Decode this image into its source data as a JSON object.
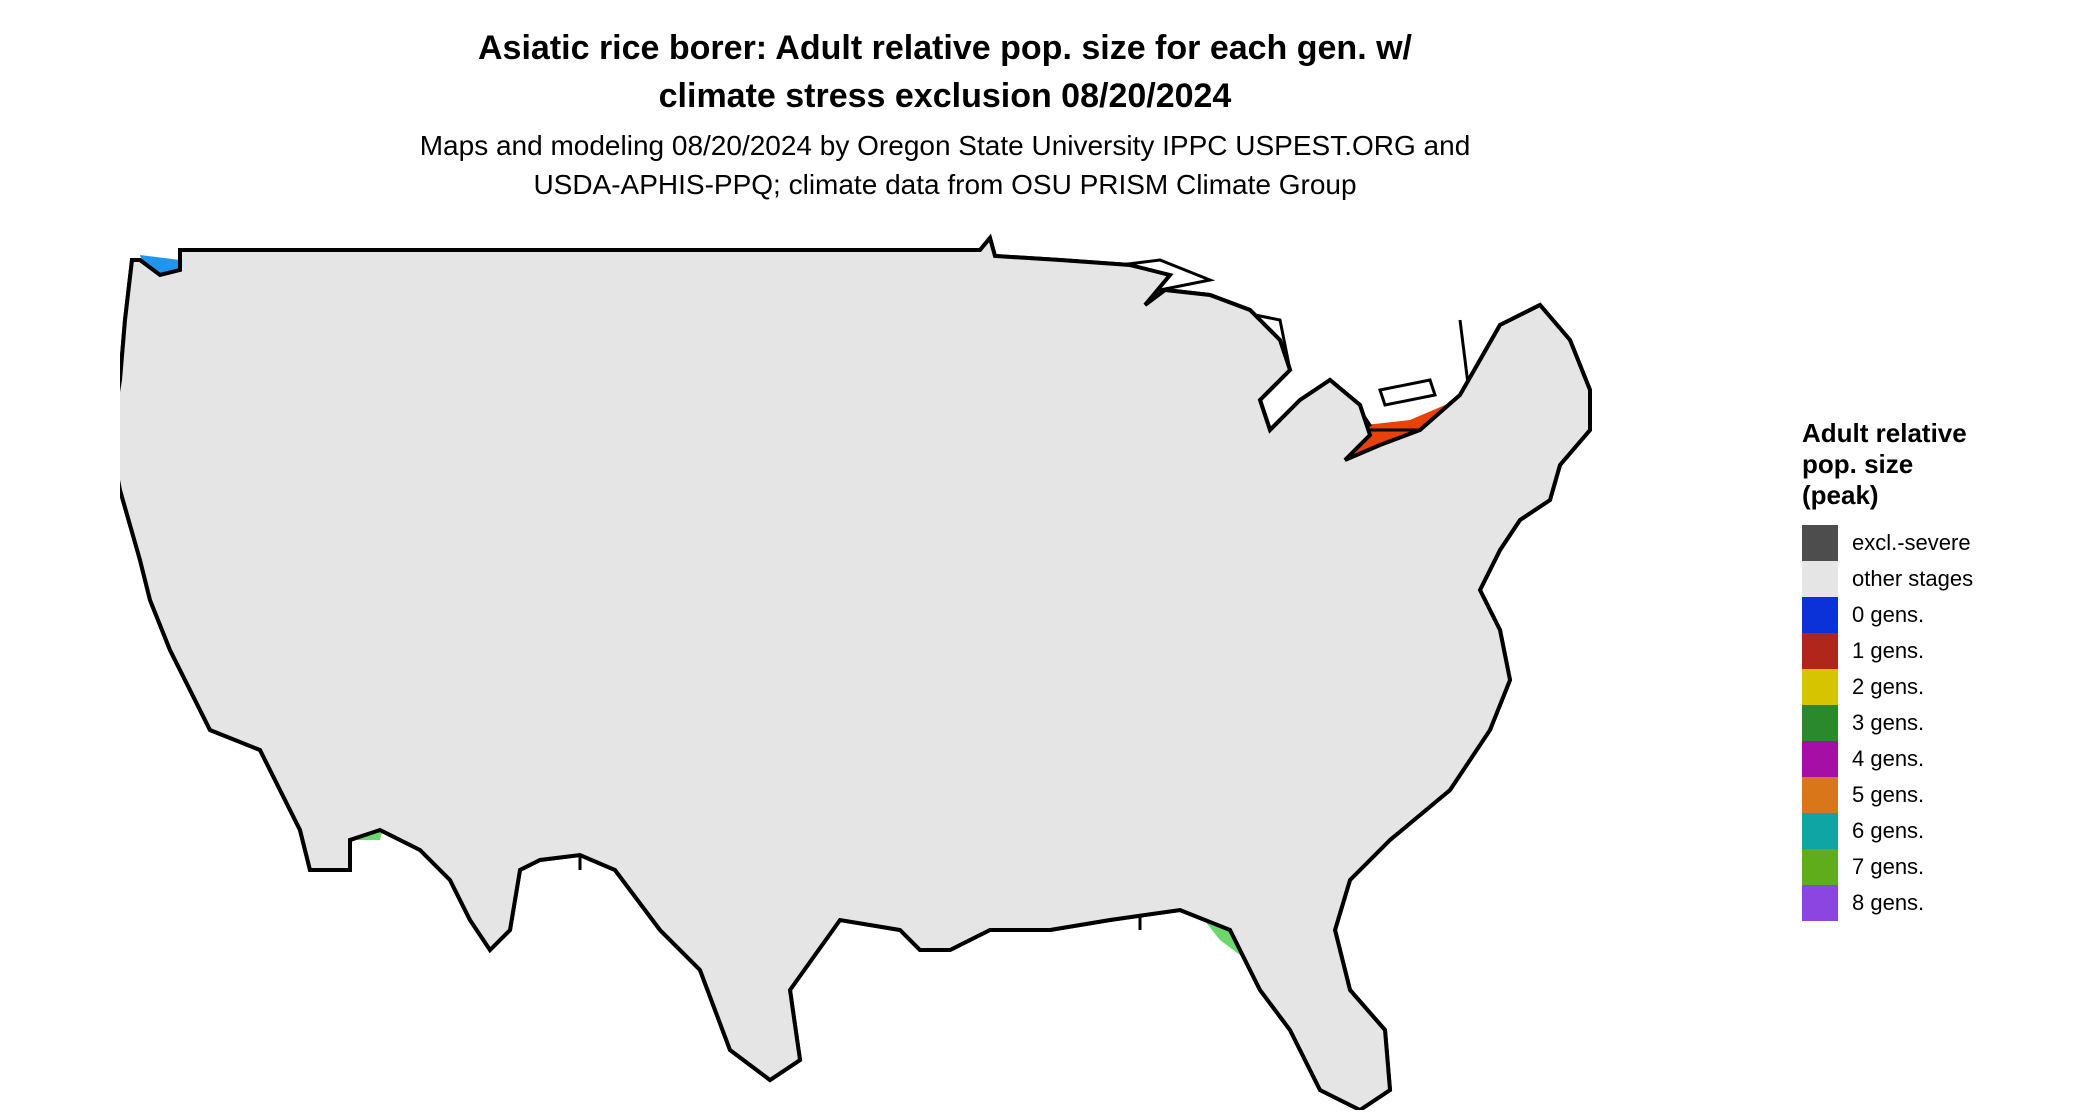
{
  "title": {
    "line1": "Asiatic rice borer: Adult relative pop. size for each gen. w/",
    "line2": "climate stress exclusion 08/20/2024"
  },
  "subtitle": {
    "line1": "Maps and modeling 08/20/2024 by Oregon State University IPPC USPEST.ORG and",
    "line2": "USDA-APHIS-PPQ; climate data from OSU PRISM Climate Group"
  },
  "legend": {
    "title_line1": "Adult relative",
    "title_line2": "pop. size",
    "title_line3": "(peak)",
    "items": [
      {
        "label": "excl.-severe",
        "color": "#4d4d4d"
      },
      {
        "label": "other stages",
        "color": "#e5e5e5"
      },
      {
        "label": "0 gens.",
        "color": "#0a32d8"
      },
      {
        "label": "1 gens.",
        "color": "#b0261a"
      },
      {
        "label": "2 gens.",
        "color": "#d6c400"
      },
      {
        "label": "3 gens.",
        "color": "#2a8a2a"
      },
      {
        "label": "4 gens.",
        "color": "#a60fa6"
      },
      {
        "label": "5 gens.",
        "color": "#d9761a"
      },
      {
        "label": "6 gens.",
        "color": "#10a5a5"
      },
      {
        "label": "7 gens.",
        "color": "#5fad1a"
      },
      {
        "label": "8 gens.",
        "color": "#8b45e0"
      }
    ]
  },
  "map": {
    "base_color": "#e5e5e5",
    "border_color": "#000000",
    "region_colors": {
      "one_gen": "#e8420a",
      "two_gen": "#ffff00",
      "three_gen": "#6cd86c",
      "zero_gen": "#1e96f0",
      "four_gen": "#ff19ff"
    }
  }
}
